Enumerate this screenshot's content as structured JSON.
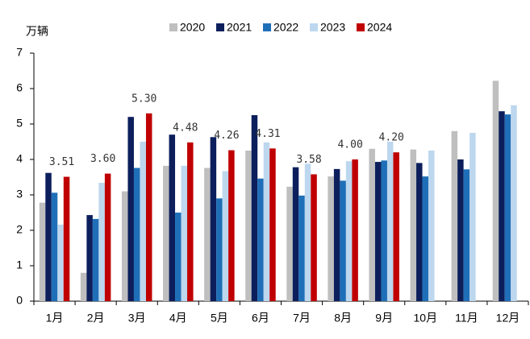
{
  "chart_data": {
    "type": "bar",
    "y_label": "万辆",
    "categories": [
      "1月",
      "2月",
      "3月",
      "4月",
      "5月",
      "6月",
      "7月",
      "8月",
      "9月",
      "10月",
      "11月",
      "12月"
    ],
    "series": [
      {
        "name": "2020",
        "color": "#bfbfbf",
        "values": [
          2.78,
          0.8,
          3.1,
          3.82,
          3.76,
          4.25,
          3.23,
          3.52,
          4.3,
          4.28,
          4.8,
          6.22
        ]
      },
      {
        "name": "2021",
        "color": "#0c1f5c",
        "values": [
          3.62,
          2.43,
          5.2,
          4.7,
          4.63,
          5.25,
          3.78,
          3.73,
          3.93,
          3.9,
          4.0,
          5.36
        ]
      },
      {
        "name": "2022",
        "color": "#1f6fb8",
        "values": [
          3.06,
          2.32,
          3.76,
          2.5,
          2.9,
          3.46,
          2.98,
          3.4,
          3.97,
          3.52,
          3.72,
          5.27
        ]
      },
      {
        "name": "2023",
        "color": "#bdd7ee",
        "values": [
          2.16,
          3.34,
          4.5,
          3.82,
          3.67,
          4.48,
          3.88,
          3.95,
          4.5,
          4.25,
          4.75,
          5.53
        ]
      },
      {
        "name": "2024",
        "color": "#c00000",
        "values": [
          3.51,
          3.6,
          5.3,
          4.48,
          4.26,
          4.31,
          3.58,
          4.0,
          4.2,
          null,
          null,
          null
        ],
        "value_labels": [
          "3.51",
          "3.60",
          "5.30",
          "4.48",
          "4.26",
          "4.31",
          "3.58",
          "4.00",
          "4.20",
          null,
          null,
          null
        ]
      }
    ],
    "ylim": [
      0,
      7
    ],
    "yticks": [
      0,
      1,
      2,
      3,
      4,
      5,
      6,
      7
    ],
    "grid": false,
    "legend": "top"
  }
}
